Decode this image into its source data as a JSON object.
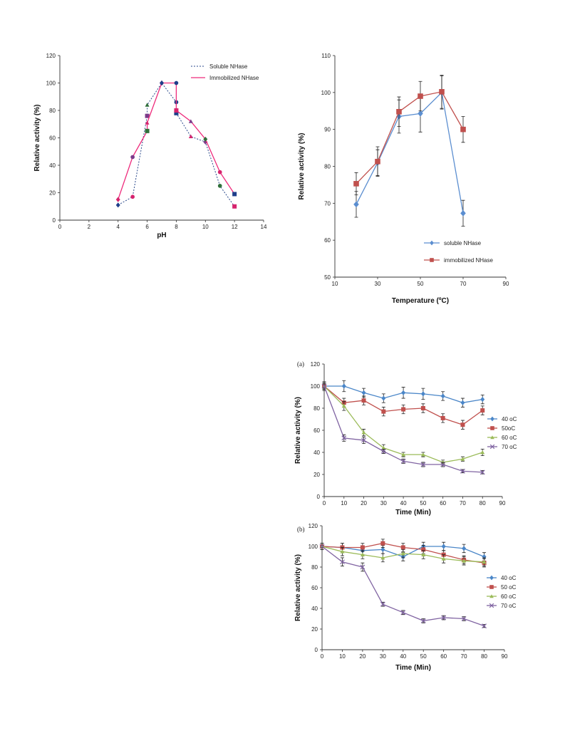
{
  "chart_data": [
    {
      "type": "line",
      "xlabel": "pH",
      "ylabel": "Relative activity (%)",
      "xlim": [
        0,
        14
      ],
      "ylim": [
        0,
        120
      ],
      "xticks": [
        0,
        2,
        4,
        6,
        8,
        10,
        12,
        14
      ],
      "yticks": [
        0,
        20,
        40,
        60,
        80,
        100,
        120
      ],
      "legend_position": "top-right",
      "series": [
        {
          "name": "Soluble NHase",
          "color": "#2b4a8c",
          "style": "dotted",
          "x": [
            4,
            5,
            6,
            6,
            7,
            8,
            8,
            9,
            10,
            11,
            12
          ],
          "y": [
            11,
            17,
            76,
            84,
            100,
            86,
            78,
            61,
            57,
            25,
            10
          ]
        },
        {
          "name": "Immobilized NHase",
          "color": "#ee2a7b",
          "style": "solid",
          "x": [
            4,
            5,
            6,
            6,
            7,
            8,
            8,
            9,
            10,
            11,
            12
          ],
          "y": [
            15,
            46,
            65,
            71,
            100,
            100,
            80,
            72,
            59,
            35,
            19
          ]
        }
      ]
    },
    {
      "type": "line",
      "xlabel": "Temperature (ºC)",
      "ylabel": "Relative activity (%)",
      "xlim": [
        10,
        90
      ],
      "ylim": [
        50,
        110
      ],
      "xticks": [
        10,
        30,
        50,
        70,
        90
      ],
      "yticks": [
        50,
        60,
        70,
        80,
        90,
        100,
        110
      ],
      "legend_position": "bottom-right",
      "series": [
        {
          "name": "soluble NHase",
          "color": "#5b8ed0",
          "marker": "diamond",
          "x": [
            20,
            30,
            40,
            50,
            60,
            70
          ],
          "y": [
            69.7,
            81,
            93.5,
            94.3,
            100,
            67.3
          ],
          "err": [
            3.5,
            3.5,
            4.5,
            5,
            4.5,
            3.5
          ]
        },
        {
          "name": "immobilized NHase",
          "color": "#c0504d",
          "marker": "square",
          "x": [
            20,
            30,
            40,
            50,
            60,
            70
          ],
          "y": [
            75.3,
            81.3,
            94.8,
            99,
            100.2,
            90
          ],
          "err": [
            3,
            4,
            4,
            4,
            4.5,
            3.5
          ]
        }
      ]
    },
    {
      "type": "line",
      "panel_label": "(a)",
      "xlabel": "Time (Min)",
      "ylabel": "Relative activity (%)",
      "xlim": [
        0,
        90
      ],
      "ylim": [
        0,
        120
      ],
      "xticks": [
        0,
        10,
        20,
        30,
        40,
        50,
        60,
        70,
        80,
        90
      ],
      "yticks": [
        0,
        20,
        40,
        60,
        80,
        100,
        120
      ],
      "legend_position": "right",
      "series": [
        {
          "name": "40 oC",
          "color": "#4a86c8",
          "marker": "diamond",
          "x": [
            0,
            10,
            20,
            30,
            40,
            50,
            60,
            70,
            80
          ],
          "y": [
            100,
            100,
            94,
            89,
            94,
            93,
            91,
            85,
            88
          ],
          "err": [
            4,
            5,
            4,
            4,
            5,
            5,
            4,
            4,
            4
          ]
        },
        {
          "name": "50oC",
          "color": "#c0504d",
          "marker": "square",
          "x": [
            0,
            10,
            20,
            30,
            40,
            50,
            60,
            70,
            80
          ],
          "y": [
            100,
            85,
            87,
            77,
            79,
            80,
            71,
            65,
            78
          ],
          "err": [
            3,
            4,
            4,
            4,
            4,
            4,
            4,
            4,
            4
          ]
        },
        {
          "name": "60 oC",
          "color": "#9bbb59",
          "marker": "triangle",
          "x": [
            0,
            10,
            20,
            30,
            40,
            50,
            60,
            70,
            80
          ],
          "y": [
            100,
            82,
            58,
            44,
            38,
            38,
            31,
            34,
            40
          ],
          "err": [
            3,
            4,
            3,
            3,
            2,
            2,
            2,
            2,
            3
          ]
        },
        {
          "name": "70 oC",
          "color": "#8064a2",
          "marker": "x",
          "x": [
            0,
            10,
            20,
            30,
            40,
            50,
            60,
            70,
            80
          ],
          "y": [
            100,
            53,
            51,
            41,
            32,
            29,
            29,
            23,
            22
          ],
          "err": [
            2,
            3,
            3,
            2,
            2,
            2,
            2,
            1.5,
            1.5
          ]
        }
      ]
    },
    {
      "type": "line",
      "panel_label": "(b)",
      "xlabel": "Time (Min)",
      "ylabel": "Relative activity (%)",
      "xlim": [
        0,
        90
      ],
      "ylim": [
        0,
        120
      ],
      "xticks": [
        0,
        10,
        20,
        30,
        40,
        50,
        60,
        70,
        80,
        90
      ],
      "yticks": [
        0,
        20,
        40,
        60,
        80,
        100,
        120
      ],
      "legend_position": "right",
      "series": [
        {
          "name": "40 oC",
          "color": "#4a86c8",
          "marker": "diamond",
          "x": [
            0,
            10,
            20,
            30,
            40,
            50,
            60,
            70,
            80
          ],
          "y": [
            100,
            99,
            96,
            97,
            90,
            100,
            100,
            98,
            90
          ],
          "err": [
            3,
            4,
            4,
            4,
            4,
            4,
            4,
            4,
            4
          ]
        },
        {
          "name": "50 oC",
          "color": "#c0504d",
          "marker": "square",
          "x": [
            0,
            10,
            20,
            30,
            40,
            50,
            60,
            70,
            80
          ],
          "y": [
            100,
            99,
            99,
            103,
            99,
            97,
            92,
            87,
            84
          ],
          "err": [
            3,
            4,
            4,
            4,
            4,
            4,
            4,
            4,
            4
          ]
        },
        {
          "name": "60 oC",
          "color": "#9bbb59",
          "marker": "triangle",
          "x": [
            0,
            10,
            20,
            30,
            40,
            50,
            60,
            70,
            80
          ],
          "y": [
            100,
            95,
            92,
            89,
            93,
            92,
            88,
            86,
            85
          ],
          "err": [
            3,
            4,
            4,
            4,
            4,
            4,
            4,
            4,
            4
          ]
        },
        {
          "name": "70 oC",
          "color": "#8064a2",
          "marker": "x",
          "x": [
            0,
            10,
            20,
            30,
            40,
            50,
            60,
            70,
            80
          ],
          "y": [
            100,
            85,
            80,
            44,
            36,
            28,
            31,
            30,
            23
          ],
          "err": [
            3,
            4,
            4,
            2,
            2,
            2,
            2,
            2,
            1.5
          ]
        }
      ]
    }
  ]
}
